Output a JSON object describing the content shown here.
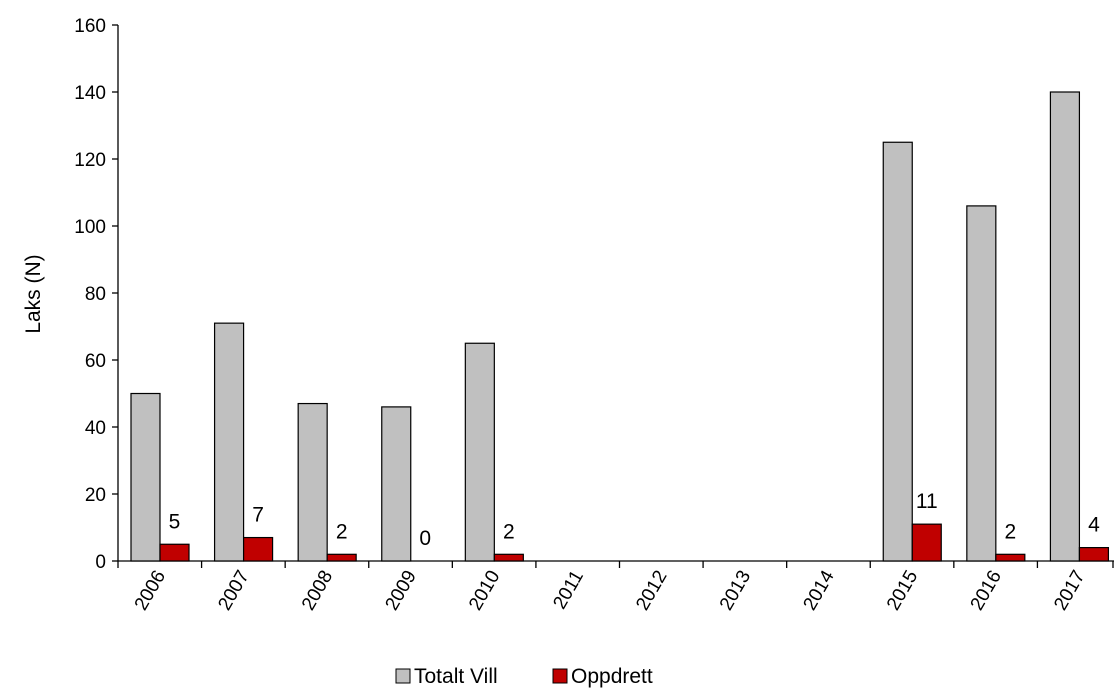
{
  "chart_data": {
    "type": "bar",
    "categories": [
      "2006",
      "2007",
      "2008",
      "2009",
      "2010",
      "2011",
      "2012",
      "2013",
      "2014",
      "2015",
      "2016",
      "2017"
    ],
    "series": [
      {
        "name": "Totalt Vill",
        "color": "#c0c0c0",
        "values": [
          50,
          71,
          47,
          46,
          65,
          null,
          null,
          null,
          null,
          125,
          106,
          140
        ]
      },
      {
        "name": "Oppdrett",
        "color": "#c00000",
        "values": [
          5,
          7,
          2,
          0,
          2,
          null,
          null,
          null,
          null,
          11,
          2,
          4
        ],
        "data_labels": [
          "5",
          "7",
          "2",
          "0",
          "2",
          "",
          "",
          "",
          "",
          "11",
          "2",
          "4"
        ]
      }
    ],
    "ylabel": "Laks (N)",
    "xlabel": "",
    "ylim": [
      0,
      160
    ],
    "yticks": [
      "0",
      "20",
      "40",
      "60",
      "80",
      "100",
      "120",
      "140",
      "160"
    ],
    "legend_position": "bottom-center",
    "grid": false,
    "x_tick_rotation": "-60deg"
  }
}
